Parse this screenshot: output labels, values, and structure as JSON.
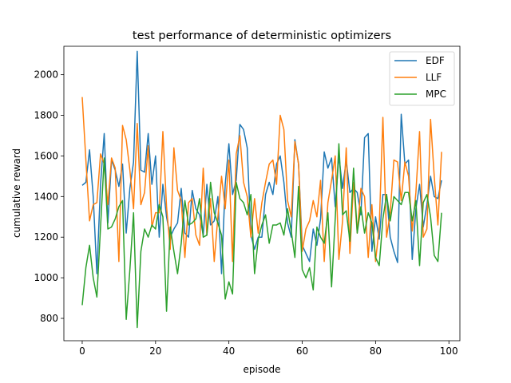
{
  "chart_data": {
    "type": "line",
    "title": "test performance of deterministic optimizers",
    "xlabel": "episode",
    "ylabel": "cumulative reward",
    "xlim": [
      -5,
      103
    ],
    "ylim": [
      690,
      2140
    ],
    "xticks": [
      0,
      20,
      40,
      60,
      80,
      100
    ],
    "yticks": [
      800,
      1000,
      1200,
      1400,
      1600,
      1800,
      2000
    ],
    "grid": false,
    "legend_position": "top-right",
    "series": [
      {
        "name": "EDF",
        "color": "#1f77b4",
        "values": [
          1455,
          1470,
          1630,
          1400,
          1020,
          1460,
          1710,
          1270,
          1580,
          1530,
          1450,
          1560,
          1220,
          1440,
          1570,
          2115,
          1530,
          1520,
          1710,
          1460,
          1600,
          1200,
          1460,
          1300,
          1200,
          1240,
          1270,
          1440,
          1220,
          1200,
          1430,
          1340,
          1310,
          1210,
          1460,
          1260,
          1280,
          1400,
          1020,
          1460,
          1660,
          1410,
          1480,
          1755,
          1730,
          1640,
          1210,
          1140,
          1200,
          1200,
          1410,
          1470,
          1410,
          1560,
          1600,
          1470,
          1270,
          1200,
          1680,
          1560,
          1160,
          1120,
          1080,
          1240,
          1160,
          1290,
          1620,
          1540,
          1590,
          1350,
          1600,
          1440,
          1580,
          1420,
          1440,
          1420,
          1310,
          1690,
          1710,
          1130,
          1300,
          1190,
          1410,
          1410,
          1200,
          1130,
          1075,
          1805,
          1560,
          1580,
          1090,
          1340,
          1460,
          1250,
          1360,
          1500,
          1400,
          1390,
          1480
        ]
      },
      {
        "name": "LLF",
        "color": "#ff7f0e",
        "values": [
          1890,
          1580,
          1280,
          1360,
          1370,
          1610,
          1560,
          1360,
          1590,
          1540,
          1080,
          1750,
          1680,
          1530,
          1340,
          1760,
          1360,
          1420,
          1650,
          1250,
          1320,
          1320,
          1720,
          1350,
          1140,
          1640,
          1430,
          1380,
          1100,
          1370,
          1390,
          1210,
          1160,
          1540,
          1210,
          1390,
          1080,
          1300,
          1500,
          1340,
          1580,
          1080,
          1610,
          1700,
          1470,
          1400,
          1200,
          1390,
          1220,
          1370,
          1470,
          1560,
          1580,
          1460,
          1800,
          1730,
          1380,
          1300,
          1670,
          1560,
          1130,
          1240,
          1280,
          1380,
          1300,
          1480,
          1080,
          1370,
          1480,
          1600,
          1090,
          1280,
          1640,
          1120,
          1470,
          1220,
          1440,
          1400,
          1100,
          1360,
          1080,
          1250,
          1790,
          1200,
          1320,
          1580,
          1570,
          1380,
          1570,
          1500,
          1230,
          1420,
          1720,
          1200,
          1240,
          1780,
          1500,
          1260,
          1620
        ]
      },
      {
        "name": "MPC",
        "color": "#2ca02c",
        "values": [
          865,
          1050,
          1160,
          1000,
          905,
          1250,
          1590,
          1240,
          1250,
          1290,
          1350,
          1380,
          795,
          1040,
          1320,
          755,
          1130,
          1240,
          1200,
          1260,
          1240,
          1360,
          1300,
          835,
          1250,
          1130,
          1020,
          1170,
          1380,
          1260,
          1270,
          1290,
          1390,
          1200,
          1210,
          1470,
          1320,
          1270,
          1210,
          895,
          980,
          920,
          1470,
          1390,
          1370,
          1310,
          1410,
          1020,
          1190,
          1260,
          1310,
          1170,
          1260,
          1260,
          1270,
          1210,
          1340,
          1230,
          1100,
          1450,
          1040,
          1000,
          1050,
          940,
          1250,
          1200,
          1170,
          1320,
          955,
          1290,
          1660,
          1310,
          1330,
          1180,
          1540,
          1220,
          1350,
          1220,
          1320,
          1270,
          1100,
          1060,
          1290,
          1410,
          1280,
          1400,
          1380,
          1360,
          1420,
          1420,
          1280,
          1380,
          1060,
          1370,
          1410,
          1300,
          1110,
          1080,
          1320
        ]
      }
    ]
  }
}
